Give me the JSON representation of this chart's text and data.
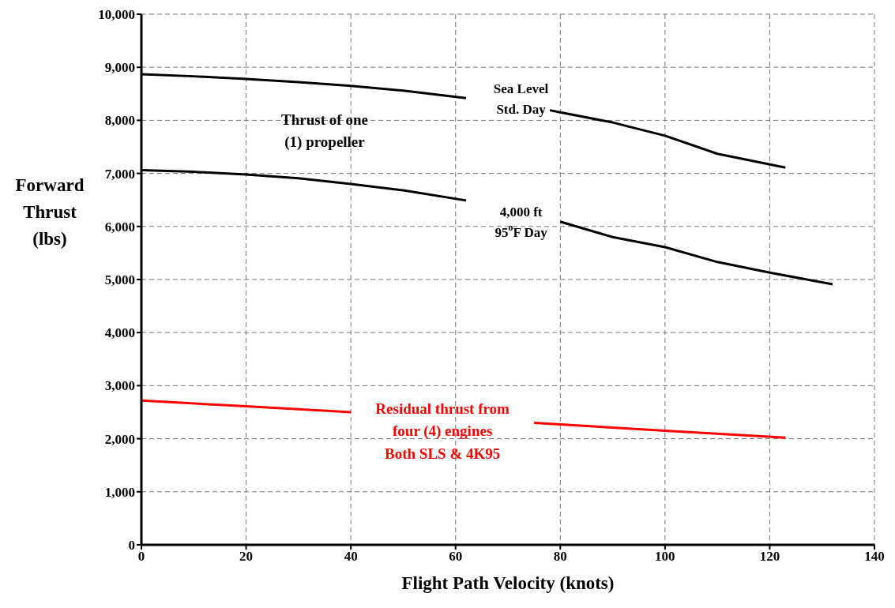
{
  "chart_data": {
    "type": "line",
    "xlabel": "Flight Path Velocity (knots)",
    "ylabel": "Forward\nThrust\n(lbs)",
    "series": [
      {
        "color": "#000000",
        "x": [
          0,
          10,
          20,
          30,
          40,
          50,
          62,
          70,
          78,
          80,
          90,
          100,
          110,
          123
        ],
        "values": [
          8870,
          8830,
          8780,
          8720,
          8650,
          8560,
          8420,
          null,
          8190,
          8150,
          7960,
          7710,
          7370,
          7110
        ]
      },
      {
        "color": "#000000",
        "x": [
          0,
          10,
          20,
          30,
          40,
          50,
          62,
          70,
          80,
          90,
          100,
          110,
          120,
          132
        ],
        "values": [
          7060,
          7030,
          6980,
          6910,
          6800,
          6680,
          6490,
          null,
          6090,
          5800,
          5610,
          5330,
          5130,
          4910
        ]
      },
      {
        "color": "#ff0000",
        "x": [
          0,
          20,
          40,
          60,
          75,
          100,
          123
        ],
        "values": [
          2720,
          2610,
          2500,
          null,
          2300,
          2150,
          2020
        ]
      }
    ],
    "annotations": [
      "Thrust of one\n(1) propeller",
      "Sea Level\nStd. Day",
      "4,000 ft\n95$^{o}$F Day",
      "Residual thrust from\nfour (4) engines\nBoth SLS & 4K95"
    ],
    "xlim": [
      0,
      140
    ],
    "xticks": [
      0,
      20,
      40,
      60,
      80,
      100,
      120,
      140
    ],
    "ylim": [
      0,
      10000
    ],
    "yticks": [
      0,
      {
        "value": 1000,
        "label": "1,000"
      },
      {
        "value": 2000,
        "label": "2,000"
      },
      {
        "value": 3000,
        "label": "3,000"
      },
      {
        "value": 4000,
        "label": "4,000"
      },
      {
        "value": 5000,
        "label": "5,000"
      },
      {
        "value": 6000,
        "label": "6,000"
      },
      {
        "value": 7000,
        "label": "7,000"
      },
      {
        "value": 8000,
        "label": "8,000"
      },
      {
        "value": 9000,
        "label": "9,000"
      },
      {
        "value": 10000,
        "label": "10,000"
      }
    ],
    "grid": true,
    "marker": "none",
    "line_style": "solid"
  }
}
